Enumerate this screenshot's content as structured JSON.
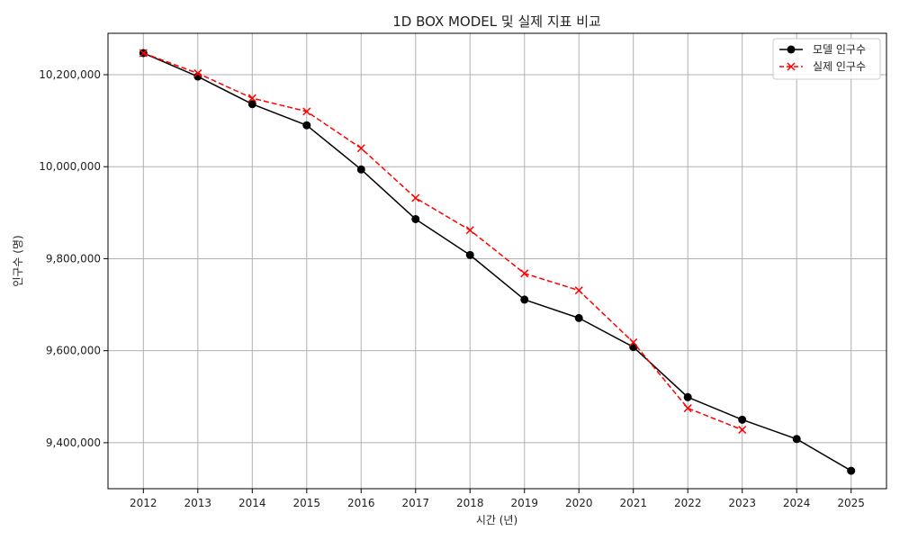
{
  "chart_data": {
    "type": "line",
    "title": "1D BOX MODEL 및 실제 지표 비교",
    "xlabel": "시간 (년)",
    "ylabel": "인구수 (명)",
    "x": [
      2012,
      2013,
      2014,
      2015,
      2016,
      2017,
      2018,
      2019,
      2020,
      2021,
      2022,
      2023,
      2024,
      2025
    ],
    "xlim": [
      2011.35,
      2025.65
    ],
    "ylim": [
      9300000,
      10290000
    ],
    "yticks": [
      9400000,
      9600000,
      9800000,
      10000000,
      10200000
    ],
    "ytick_labels": [
      "9,400,000",
      "9,600,000",
      "9,800,000",
      "10,000,000",
      "10,200,000"
    ],
    "grid": true,
    "legend_position": "top-right",
    "series": [
      {
        "name": "모델 인구수",
        "color": "#000000",
        "line_style": "solid",
        "marker": "circle",
        "x": [
          2012,
          2013,
          2014,
          2015,
          2016,
          2017,
          2018,
          2019,
          2020,
          2021,
          2022,
          2023,
          2024,
          2025
        ],
        "values": [
          10247000,
          10196000,
          10136000,
          10090000,
          9994000,
          9886000,
          9808000,
          9711000,
          9671000,
          9608000,
          9499000,
          9450000,
          9408000,
          9339000
        ]
      },
      {
        "name": "실제 인구수",
        "color": "#ff0000",
        "line_style": "dashed",
        "marker": "x",
        "x": [
          2012,
          2013,
          2014,
          2015,
          2016,
          2017,
          2018,
          2019,
          2020,
          2021,
          2022,
          2023
        ],
        "values": [
          10247000,
          10203000,
          10149000,
          10120000,
          10040000,
          9932000,
          9862000,
          9768000,
          9731000,
          9618000,
          9475000,
          9428000
        ]
      }
    ]
  }
}
